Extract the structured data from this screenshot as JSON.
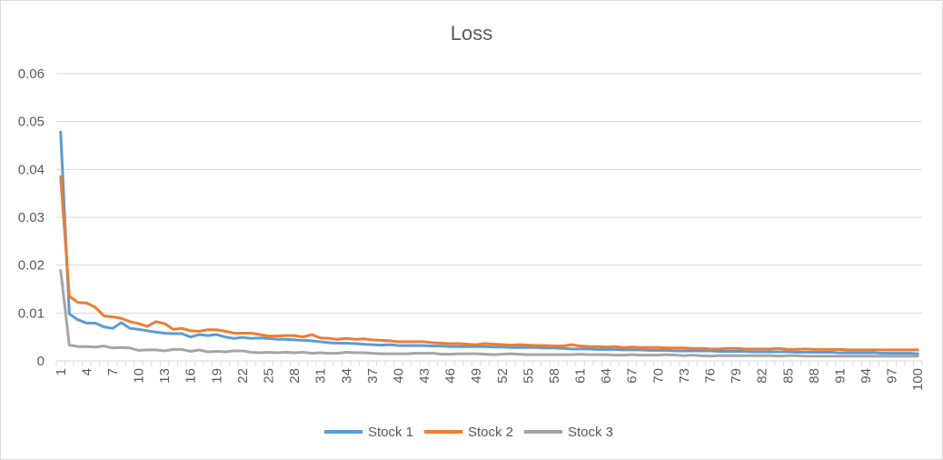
{
  "chart_data": {
    "type": "line",
    "title": "Loss",
    "xlabel": "",
    "ylabel": "",
    "ylim": [
      0,
      0.06
    ],
    "yticks": [
      "0",
      "0.01",
      "0.02",
      "0.03",
      "0.04",
      "0.05",
      "0.06"
    ],
    "xticks": [
      "1",
      "4",
      "7",
      "10",
      "13",
      "16",
      "19",
      "22",
      "25",
      "28",
      "31",
      "34",
      "37",
      "40",
      "43",
      "46",
      "49",
      "52",
      "55",
      "58",
      "61",
      "64",
      "67",
      "70",
      "73",
      "76",
      "79",
      "82",
      "85",
      "88",
      "91",
      "94",
      "97",
      "100"
    ],
    "x_range": [
      1,
      100
    ],
    "grid": "horizontal",
    "legend_position": "bottom",
    "series": [
      {
        "name": "Stock 1",
        "color": "#5B9BD5",
        "values": [
          0.0478,
          0.0098,
          0.0086,
          0.0079,
          0.0079,
          0.0071,
          0.0068,
          0.008,
          0.0068,
          0.0066,
          0.0063,
          0.006,
          0.0058,
          0.0057,
          0.0057,
          0.005,
          0.0055,
          0.0053,
          0.0055,
          0.005,
          0.0047,
          0.0049,
          0.0047,
          0.0048,
          0.0047,
          0.0045,
          0.0045,
          0.0044,
          0.0043,
          0.0042,
          0.004,
          0.0038,
          0.0037,
          0.0037,
          0.0036,
          0.0035,
          0.0034,
          0.0033,
          0.0034,
          0.0032,
          0.0032,
          0.0032,
          0.0032,
          0.0031,
          0.0031,
          0.003,
          0.003,
          0.003,
          0.003,
          0.003,
          0.0029,
          0.0029,
          0.0028,
          0.0028,
          0.0028,
          0.0028,
          0.0027,
          0.0027,
          0.0026,
          0.0025,
          0.0025,
          0.0025,
          0.0024,
          0.0024,
          0.0024,
          0.0023,
          0.0023,
          0.0023,
          0.0022,
          0.0022,
          0.0022,
          0.0021,
          0.0021,
          0.0021,
          0.0021,
          0.0021,
          0.002,
          0.002,
          0.002,
          0.002,
          0.0019,
          0.0019,
          0.0019,
          0.0019,
          0.0019,
          0.0018,
          0.0018,
          0.0018,
          0.0018,
          0.0018,
          0.0017,
          0.0017,
          0.0017,
          0.0017,
          0.0017,
          0.0016,
          0.0016,
          0.0016,
          0.0016,
          0.0015
        ]
      },
      {
        "name": "Stock 2",
        "color": "#ED7D31",
        "values": [
          0.0385,
          0.0135,
          0.0122,
          0.0121,
          0.0112,
          0.0094,
          0.0092,
          0.0089,
          0.0082,
          0.0078,
          0.0072,
          0.0082,
          0.0078,
          0.0066,
          0.0068,
          0.0063,
          0.0062,
          0.0065,
          0.0065,
          0.0062,
          0.0058,
          0.0058,
          0.0058,
          0.0055,
          0.0052,
          0.0052,
          0.0053,
          0.0053,
          0.005,
          0.0055,
          0.0048,
          0.0047,
          0.0045,
          0.0047,
          0.0045,
          0.0046,
          0.0044,
          0.0043,
          0.0042,
          0.004,
          0.004,
          0.004,
          0.004,
          0.0038,
          0.0037,
          0.0036,
          0.0036,
          0.0035,
          0.0034,
          0.0036,
          0.0035,
          0.0034,
          0.0033,
          0.0034,
          0.0033,
          0.0032,
          0.0032,
          0.0031,
          0.0031,
          0.0034,
          0.0031,
          0.003,
          0.003,
          0.0029,
          0.003,
          0.0028,
          0.0029,
          0.0028,
          0.0028,
          0.0028,
          0.0027,
          0.0027,
          0.0027,
          0.0026,
          0.0026,
          0.0025,
          0.0025,
          0.0026,
          0.0026,
          0.0025,
          0.0025,
          0.0025,
          0.0025,
          0.0026,
          0.0024,
          0.0024,
          0.0025,
          0.0024,
          0.0024,
          0.0024,
          0.0024,
          0.0023,
          0.0023,
          0.0023,
          0.0023,
          0.0023,
          0.0023,
          0.0023,
          0.0023,
          0.0023
        ]
      },
      {
        "name": "Stock 3",
        "color": "#A5A5A5",
        "values": [
          0.0189,
          0.0033,
          0.003,
          0.003,
          0.0029,
          0.0031,
          0.0027,
          0.0028,
          0.0027,
          0.0022,
          0.0023,
          0.0023,
          0.0021,
          0.0024,
          0.0024,
          0.002,
          0.0023,
          0.0019,
          0.002,
          0.0019,
          0.0021,
          0.0021,
          0.0018,
          0.0017,
          0.0018,
          0.0017,
          0.0018,
          0.0017,
          0.0018,
          0.0016,
          0.0017,
          0.0016,
          0.0016,
          0.0018,
          0.0017,
          0.0017,
          0.0016,
          0.0015,
          0.0015,
          0.0015,
          0.0015,
          0.0016,
          0.0016,
          0.0016,
          0.0014,
          0.0014,
          0.0015,
          0.0015,
          0.0015,
          0.0014,
          0.0013,
          0.0014,
          0.0015,
          0.0014,
          0.0013,
          0.0013,
          0.0013,
          0.0013,
          0.0013,
          0.0013,
          0.0014,
          0.0013,
          0.0013,
          0.0013,
          0.0012,
          0.0012,
          0.0013,
          0.0012,
          0.0012,
          0.0012,
          0.0013,
          0.0012,
          0.0011,
          0.0012,
          0.0011,
          0.001,
          0.0011,
          0.0011,
          0.0011,
          0.0011,
          0.0011,
          0.0011,
          0.0011,
          0.001,
          0.0011,
          0.0011,
          0.001,
          0.001,
          0.001,
          0.001,
          0.001,
          0.001,
          0.001,
          0.001,
          0.001,
          0.001,
          0.001,
          0.001,
          0.001,
          0.001
        ]
      }
    ]
  }
}
